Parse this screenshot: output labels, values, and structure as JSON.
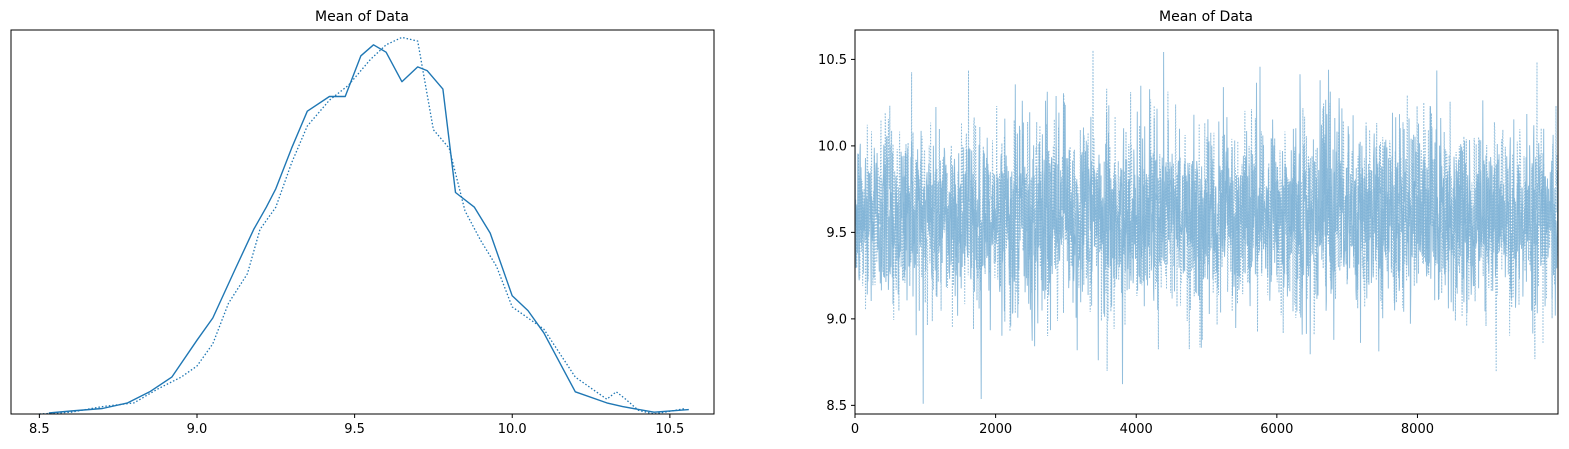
{
  "chart_data": [
    {
      "type": "line",
      "title": "Mean of Data",
      "xlabel": "",
      "ylabel": "",
      "xlim": [
        8.41,
        10.64
      ],
      "ylim": [
        0,
        1.04
      ],
      "xticks": [
        8.5,
        9.0,
        9.5,
        10.0,
        10.5
      ],
      "xtick_labels": [
        "8.5",
        "9.0",
        "9.5",
        "10.0",
        "10.5"
      ],
      "grid": false,
      "series": [
        {
          "style": "solid",
          "x": [
            8.53,
            8.6,
            8.7,
            8.78,
            8.85,
            8.92,
            9.0,
            9.05,
            9.12,
            9.18,
            9.22,
            9.25,
            9.3,
            9.35,
            9.42,
            9.47,
            9.52,
            9.56,
            9.6,
            9.65,
            9.7,
            9.73,
            9.78,
            9.82,
            9.88,
            9.93,
            10.0,
            10.05,
            10.1,
            10.2,
            10.3,
            10.35,
            10.45,
            10.56
          ],
          "y": [
            0.003,
            0.008,
            0.015,
            0.03,
            0.06,
            0.1,
            0.2,
            0.26,
            0.39,
            0.5,
            0.56,
            0.61,
            0.72,
            0.82,
            0.86,
            0.86,
            0.97,
            1.0,
            0.98,
            0.9,
            0.94,
            0.93,
            0.88,
            0.6,
            0.56,
            0.49,
            0.32,
            0.28,
            0.22,
            0.06,
            0.03,
            0.02,
            0.005,
            0.012
          ]
        },
        {
          "style": "dotted",
          "x": [
            8.5,
            8.6,
            8.7,
            8.8,
            8.88,
            8.95,
            9.0,
            9.05,
            9.1,
            9.16,
            9.2,
            9.25,
            9.3,
            9.35,
            9.42,
            9.48,
            9.55,
            9.6,
            9.65,
            9.7,
            9.75,
            9.8,
            9.85,
            9.9,
            9.95,
            10.0,
            10.05,
            10.1,
            10.2,
            10.3,
            10.33,
            10.36,
            10.4,
            10.45,
            10.55
          ],
          "y": [
            0.0,
            0.005,
            0.02,
            0.03,
            0.07,
            0.1,
            0.13,
            0.19,
            0.3,
            0.38,
            0.5,
            0.56,
            0.68,
            0.78,
            0.85,
            0.89,
            0.96,
            1.0,
            1.02,
            1.01,
            0.77,
            0.72,
            0.55,
            0.47,
            0.4,
            0.29,
            0.26,
            0.23,
            0.1,
            0.04,
            0.06,
            0.04,
            0.01,
            0.0,
            0.015
          ]
        }
      ]
    },
    {
      "type": "line",
      "title": "Mean of Data",
      "xlabel": "",
      "ylabel": "",
      "xlim": [
        0,
        9999
      ],
      "ylim": [
        8.45,
        10.67
      ],
      "xticks": [
        0,
        2000,
        4000,
        6000,
        8000
      ],
      "xtick_labels": [
        "0",
        "2000",
        "4000",
        "6000",
        "8000"
      ],
      "yticks": [
        8.5,
        9.0,
        9.5,
        10.0,
        10.5
      ],
      "ytick_labels": [
        "8.5",
        "9.0",
        "9.5",
        "10.0",
        "10.5"
      ],
      "grid": false,
      "draws": 10000,
      "center": 9.6,
      "spread": 0.27,
      "min": 8.5,
      "max": 10.56,
      "series": [
        {
          "style": "solid"
        },
        {
          "style": "dotted"
        }
      ]
    }
  ],
  "colors": {
    "line": "#1f77b4",
    "trace": "#7fb3d6"
  }
}
